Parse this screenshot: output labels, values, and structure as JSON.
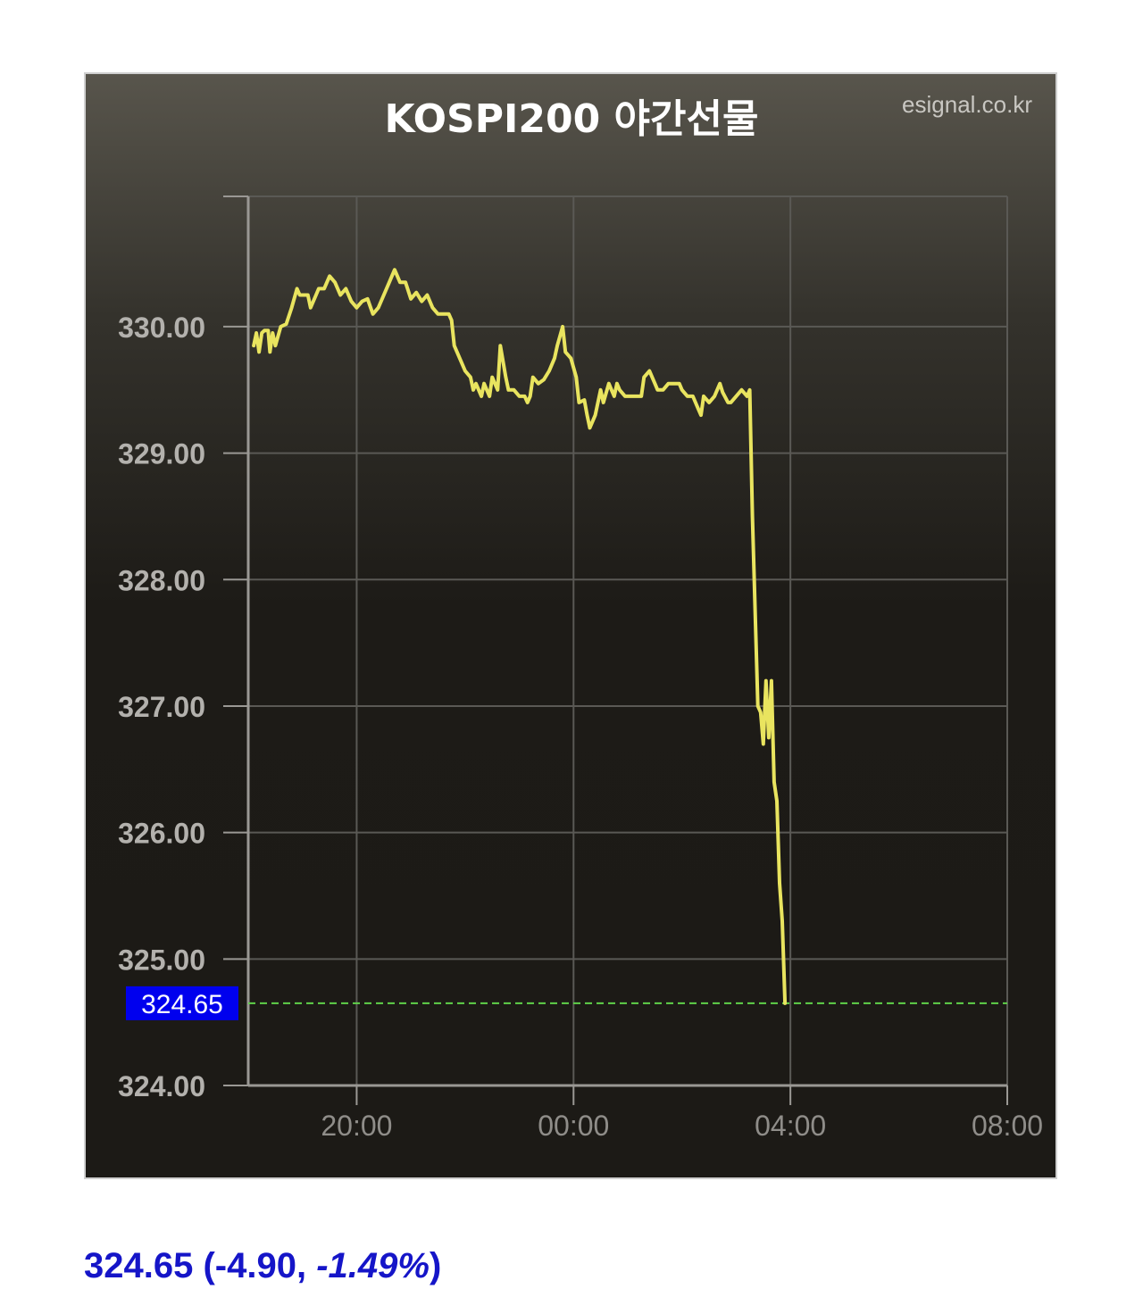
{
  "chart_data": {
    "type": "line",
    "title": "KOSPI200 야간선물",
    "source": "esignal.co.kr",
    "xlabel": "",
    "ylabel": "",
    "x_ticks": [
      "20:00",
      "00:00",
      "04:00",
      "08:00"
    ],
    "y_ticks": [
      "324.00",
      "325.00",
      "326.00",
      "327.00",
      "328.00",
      "329.00",
      "330.00"
    ],
    "ylim": [
      324.0,
      331.03
    ],
    "xlim": [
      "18:00",
      "08:00"
    ],
    "grid": true,
    "series": [
      {
        "color": "#e9e45f",
        "points": [
          [
            "18:06",
            329.85
          ],
          [
            "18:09",
            329.95
          ],
          [
            "18:12",
            329.8
          ],
          [
            "18:15",
            329.95
          ],
          [
            "18:18",
            329.97
          ],
          [
            "18:22",
            329.97
          ],
          [
            "18:24",
            329.8
          ],
          [
            "18:27",
            329.95
          ],
          [
            "18:30",
            329.85
          ],
          [
            "18:36",
            330.0
          ],
          [
            "18:42",
            330.02
          ],
          [
            "18:48",
            330.15
          ],
          [
            "18:54",
            330.3
          ],
          [
            "18:57",
            330.25
          ],
          [
            "19:06",
            330.25
          ],
          [
            "19:09",
            330.15
          ],
          [
            "19:15",
            330.25
          ],
          [
            "19:18",
            330.3
          ],
          [
            "19:24",
            330.3
          ],
          [
            "19:30",
            330.4
          ],
          [
            "19:36",
            330.35
          ],
          [
            "19:42",
            330.25
          ],
          [
            "19:48",
            330.3
          ],
          [
            "19:54",
            330.2
          ],
          [
            "20:00",
            330.15
          ],
          [
            "20:06",
            330.2
          ],
          [
            "20:12",
            330.22
          ],
          [
            "20:18",
            330.1
          ],
          [
            "20:24",
            330.15
          ],
          [
            "20:30",
            330.25
          ],
          [
            "20:36",
            330.35
          ],
          [
            "20:42",
            330.45
          ],
          [
            "20:48",
            330.35
          ],
          [
            "20:54",
            330.35
          ],
          [
            "21:00",
            330.22
          ],
          [
            "21:06",
            330.27
          ],
          [
            "21:12",
            330.2
          ],
          [
            "21:18",
            330.25
          ],
          [
            "21:24",
            330.15
          ],
          [
            "21:30",
            330.1
          ],
          [
            "21:36",
            330.1
          ],
          [
            "21:42",
            330.1
          ],
          [
            "21:45",
            330.05
          ],
          [
            "21:48",
            329.85
          ],
          [
            "21:54",
            329.75
          ],
          [
            "22:00",
            329.65
          ],
          [
            "22:06",
            329.6
          ],
          [
            "22:09",
            329.5
          ],
          [
            "22:12",
            329.55
          ],
          [
            "22:18",
            329.45
          ],
          [
            "22:21",
            329.55
          ],
          [
            "22:27",
            329.45
          ],
          [
            "22:30",
            329.6
          ],
          [
            "22:36",
            329.5
          ],
          [
            "22:39",
            329.85
          ],
          [
            "22:45",
            329.6
          ],
          [
            "22:48",
            329.5
          ],
          [
            "22:51",
            329.5
          ],
          [
            "22:54",
            329.5
          ],
          [
            "23:00",
            329.45
          ],
          [
            "23:06",
            329.45
          ],
          [
            "23:09",
            329.4
          ],
          [
            "23:12",
            329.45
          ],
          [
            "23:15",
            329.6
          ],
          [
            "23:21",
            329.55
          ],
          [
            "23:27",
            329.58
          ],
          [
            "23:33",
            329.65
          ],
          [
            "23:39",
            329.75
          ],
          [
            "23:42",
            329.85
          ],
          [
            "23:48",
            330.0
          ],
          [
            "23:51",
            329.8
          ],
          [
            "23:57",
            329.75
          ],
          [
            "00:03",
            329.6
          ],
          [
            "00:06",
            329.4
          ],
          [
            "00:12",
            329.42
          ],
          [
            "00:15",
            329.3
          ],
          [
            "00:18",
            329.2
          ],
          [
            "00:24",
            329.3
          ],
          [
            "00:30",
            329.5
          ],
          [
            "00:33",
            329.4
          ],
          [
            "00:39",
            329.55
          ],
          [
            "00:45",
            329.45
          ],
          [
            "00:48",
            329.55
          ],
          [
            "00:51",
            329.5
          ],
          [
            "00:57",
            329.45
          ],
          [
            "01:03",
            329.45
          ],
          [
            "01:09",
            329.45
          ],
          [
            "01:15",
            329.45
          ],
          [
            "01:18",
            329.6
          ],
          [
            "01:24",
            329.65
          ],
          [
            "01:30",
            329.55
          ],
          [
            "01:33",
            329.5
          ],
          [
            "01:39",
            329.5
          ],
          [
            "01:45",
            329.55
          ],
          [
            "01:51",
            329.55
          ],
          [
            "01:57",
            329.55
          ],
          [
            "02:00",
            329.5
          ],
          [
            "02:06",
            329.45
          ],
          [
            "02:12",
            329.45
          ],
          [
            "02:18",
            329.35
          ],
          [
            "02:21",
            329.3
          ],
          [
            "02:24",
            329.45
          ],
          [
            "02:30",
            329.4
          ],
          [
            "02:36",
            329.45
          ],
          [
            "02:42",
            329.55
          ],
          [
            "02:45",
            329.48
          ],
          [
            "02:51",
            329.4
          ],
          [
            "02:54",
            329.4
          ],
          [
            "03:00",
            329.45
          ],
          [
            "03:06",
            329.5
          ],
          [
            "03:12",
            329.45
          ],
          [
            "03:15",
            329.5
          ],
          [
            "03:18",
            328.5
          ],
          [
            "03:24",
            327.0
          ],
          [
            "03:27",
            326.95
          ],
          [
            "03:30",
            326.7
          ],
          [
            "03:33",
            327.2
          ],
          [
            "03:36",
            326.75
          ],
          [
            "03:39",
            327.2
          ],
          [
            "03:42",
            326.4
          ],
          [
            "03:45",
            326.25
          ],
          [
            "03:48",
            325.6
          ],
          [
            "03:51",
            325.3
          ],
          [
            "03:54",
            324.65
          ]
        ]
      }
    ],
    "reference_line": {
      "value": 324.65,
      "label": "324.65",
      "label_color": "#0000ee",
      "line_color": "#5fd14a"
    }
  },
  "footer": {
    "price": "324.65",
    "change_text_open": " (-4.90, ",
    "change_pct": "-1.49%",
    "change_text_close": ")",
    "color": "#1515c8"
  }
}
